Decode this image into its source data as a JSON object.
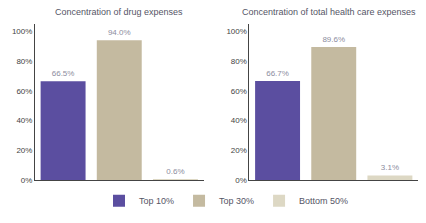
{
  "chart_data": [
    {
      "type": "bar",
      "title": "Concentration of drug expenses",
      "categories": [
        "Top 10%",
        "Top 30%",
        "Bottom 50%"
      ],
      "values": [
        66.5,
        94.0,
        0.6
      ],
      "value_labels": [
        "66.5%",
        "94.0%",
        "0.6%"
      ],
      "colors": [
        "#5b4ea0",
        "#c4baa0",
        "#ddd8c4"
      ],
      "ylim": [
        0,
        105
      ],
      "yticks": [
        {
          "value": 0,
          "label": "0%"
        },
        {
          "value": 20,
          "label": "20%"
        },
        {
          "value": 40,
          "label": "40%"
        },
        {
          "value": 60,
          "label": "60%"
        },
        {
          "value": 80,
          "label": "80%"
        },
        {
          "value": 100,
          "label": "100%"
        }
      ],
      "grid": false,
      "data_labels": true,
      "tick_labels": "y",
      "legend": "bottom"
    },
    {
      "type": "bar",
      "title": "Concentration of total health care expenses",
      "categories": [
        "Top 10%",
        "Top 30%",
        "Bottom 50%"
      ],
      "values": [
        66.7,
        89.6,
        3.1
      ],
      "value_labels": [
        "66.7%",
        "89.6%",
        "3.1%"
      ],
      "colors": [
        "#5b4ea0",
        "#c4baa0",
        "#ddd8c4"
      ],
      "ylim": [
        0,
        105
      ],
      "yticks": [
        {
          "value": 0,
          "label": "0%"
        },
        {
          "value": 20,
          "label": "20%"
        },
        {
          "value": 40,
          "label": "40%"
        },
        {
          "value": 60,
          "label": "60%"
        },
        {
          "value": 80,
          "label": "80%"
        },
        {
          "value": 100,
          "label": "100%"
        }
      ],
      "grid": false,
      "data_labels": true,
      "tick_labels": "y",
      "legend": "bottom"
    }
  ]
}
